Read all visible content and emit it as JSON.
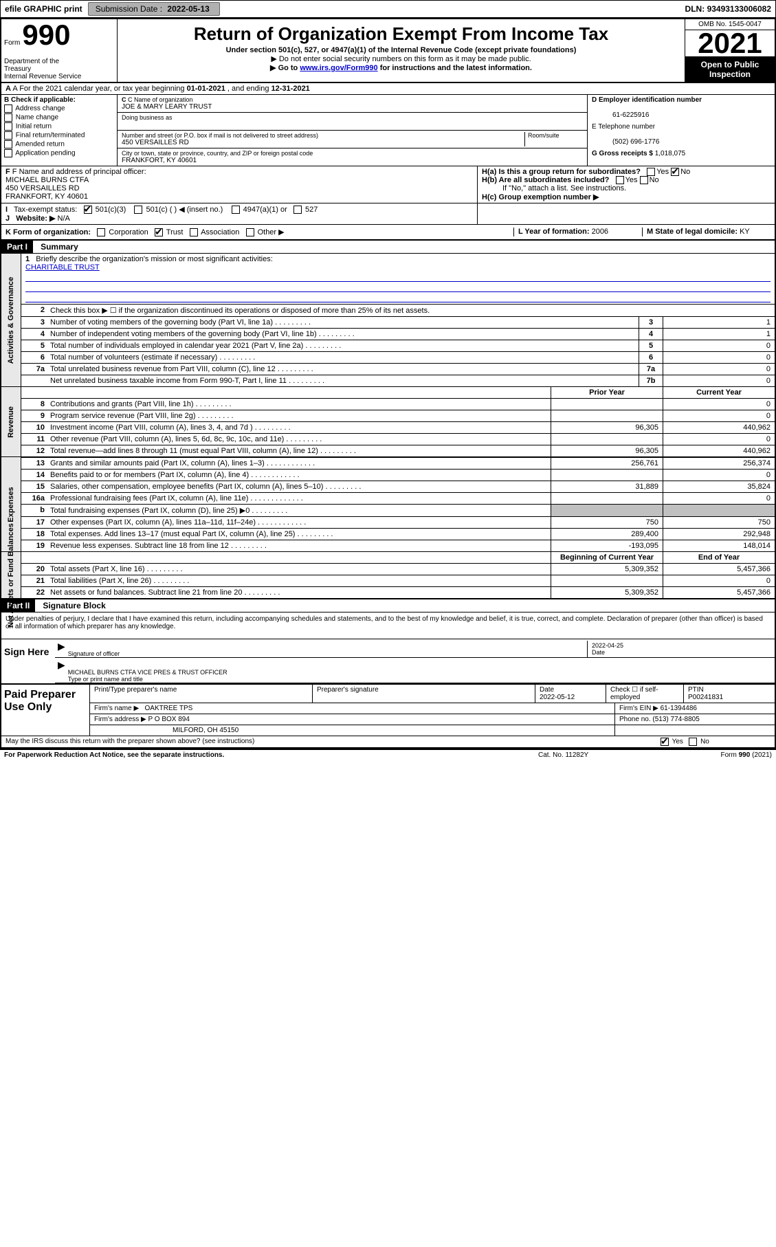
{
  "top": {
    "efile": "efile GRAPHIC print",
    "submission_label": "Submission Date :",
    "submission_date": "2022-05-13",
    "dln_label": "DLN:",
    "dln": "93493133006082"
  },
  "header": {
    "form_label": "Form",
    "form_no": "990",
    "title": "Return of Organization Exempt From Income Tax",
    "subtitle": "Under section 501(c), 527, or 4947(a)(1) of the Internal Revenue Code (except private foundations)",
    "line2": "▶ Do not enter social security numbers on this form as it may be made public.",
    "line3_pre": "▶ Go to ",
    "line3_link": "www.irs.gov/Form990",
    "line3_post": " for instructions and the latest information.",
    "dept": "Department of the Treasury\nInternal Revenue Service",
    "omb": "OMB No. 1545-0047",
    "year": "2021",
    "inspect": "Open to Public Inspection"
  },
  "row_a": {
    "text_pre": "A For the 2021 calendar year, or tax year beginning ",
    "begin": "01-01-2021",
    "mid": " , and ending ",
    "end": "12-31-2021"
  },
  "col_b": {
    "label": "B Check if applicable:",
    "items": [
      "Address change",
      "Name change",
      "Initial return",
      "Final return/terminated",
      "Amended return",
      "Application pending"
    ]
  },
  "col_c": {
    "name_lbl": "C Name of organization",
    "name": "JOE & MARY LEARY TRUST",
    "dba_lbl": "Doing business as",
    "dba": "",
    "addr_lbl": "Number and street (or P.O. box if mail is not delivered to street address)",
    "room_lbl": "Room/suite",
    "addr": "450 VERSAILLES RD",
    "city_lbl": "City or town, state or province, country, and ZIP or foreign postal code",
    "city": "FRANKFORT, KY  40601"
  },
  "col_d": {
    "d_lbl": "D Employer identification number",
    "d_val": "61-6225916",
    "e_lbl": "E Telephone number",
    "e_val": "(502) 696-1776",
    "g_lbl": "G Gross receipts $",
    "g_val": "1,018,075"
  },
  "row_f": {
    "f_lbl": "F Name and address of principal officer:",
    "f_name": "MICHAEL BURNS CTFA",
    "f_addr": "450 VERSAILLES RD",
    "f_city": "FRANKFORT, KY  40601",
    "i_lbl": "Tax-exempt status:",
    "i_501c3": "501(c)(3)",
    "i_501c": "501(c) (   ) ◀ (insert no.)",
    "i_4947": "4947(a)(1) or",
    "i_527": "527",
    "j_lbl": "Website: ▶",
    "j_val": "N/A"
  },
  "row_h": {
    "ha": "H(a)  Is this a group return for subordinates?",
    "ha_yes": "Yes",
    "ha_no": "No",
    "hb": "H(b)  Are all subordinates included?",
    "hb_yes": "Yes",
    "hb_no": "No",
    "hb_note": "If \"No,\" attach a list. See instructions.",
    "hc": "H(c)  Group exemption number ▶"
  },
  "row_k": {
    "k_lbl": "K Form of organization:",
    "k_corp": "Corporation",
    "k_trust": "Trust",
    "k_assoc": "Association",
    "k_other": "Other ▶",
    "l_lbl": "L Year of formation:",
    "l_val": "2006",
    "m_lbl": "M State of legal domicile:",
    "m_val": "KY"
  },
  "part1": {
    "hdr": "Part I",
    "title": "Summary",
    "q1_lbl": "Briefly describe the organization's mission or most significant activities:",
    "q1_val": "CHARITABLE TRUST",
    "q2": "Check this box ▶ ☐  if the organization discontinued its operations or disposed of more than 25% of its net assets.",
    "sections": {
      "gov": "Activities & Governance",
      "rev": "Revenue",
      "exp": "Expenses",
      "net": "Net Assets or Fund Balances"
    },
    "hdr_py": "Prior Year",
    "hdr_cy": "Current Year",
    "hdr_begin": "Beginning of Current Year",
    "hdr_end": "End of Year",
    "lines_gov": [
      {
        "n": "3",
        "t": "Number of voting members of the governing body (Part VI, line 1a)",
        "c": "3",
        "v": "1"
      },
      {
        "n": "4",
        "t": "Number of independent voting members of the governing body (Part VI, line 1b)",
        "c": "4",
        "v": "1"
      },
      {
        "n": "5",
        "t": "Total number of individuals employed in calendar year 2021 (Part V, line 2a)",
        "c": "5",
        "v": "0"
      },
      {
        "n": "6",
        "t": "Total number of volunteers (estimate if necessary)",
        "c": "6",
        "v": "0"
      },
      {
        "n": "7a",
        "t": "Total unrelated business revenue from Part VIII, column (C), line 12",
        "c": "7a",
        "v": "0"
      },
      {
        "n": "",
        "t": "Net unrelated business taxable income from Form 990-T, Part I, line 11",
        "c": "7b",
        "v": "0"
      }
    ],
    "lines_rev": [
      {
        "n": "8",
        "t": "Contributions and grants (Part VIII, line 1h)",
        "py": "",
        "cy": "0"
      },
      {
        "n": "9",
        "t": "Program service revenue (Part VIII, line 2g)",
        "py": "",
        "cy": "0"
      },
      {
        "n": "10",
        "t": "Investment income (Part VIII, column (A), lines 3, 4, and 7d )",
        "py": "96,305",
        "cy": "440,962"
      },
      {
        "n": "11",
        "t": "Other revenue (Part VIII, column (A), lines 5, 6d, 8c, 9c, 10c, and 11e)",
        "py": "",
        "cy": "0"
      },
      {
        "n": "12",
        "t": "Total revenue—add lines 8 through 11 (must equal Part VIII, column (A), line 12)",
        "py": "96,305",
        "cy": "440,962"
      }
    ],
    "lines_exp": [
      {
        "n": "13",
        "t": "Grants and similar amounts paid (Part IX, column (A), lines 1–3)  .  .  .",
        "py": "256,761",
        "cy": "256,374"
      },
      {
        "n": "14",
        "t": "Benefits paid to or for members (Part IX, column (A), line 4)  .  .  .",
        "py": "",
        "cy": "0"
      },
      {
        "n": "15",
        "t": "Salaries, other compensation, employee benefits (Part IX, column (A), lines 5–10)",
        "py": "31,889",
        "cy": "35,824"
      },
      {
        "n": "16a",
        "t": "Professional fundraising fees (Part IX, column (A), line 11e)  .  .  .  .",
        "py": "",
        "cy": "0"
      },
      {
        "n": "b",
        "t": "Total fundraising expenses (Part IX, column (D), line 25) ▶0",
        "py": "grey",
        "cy": "grey"
      },
      {
        "n": "17",
        "t": "Other expenses (Part IX, column (A), lines 11a–11d, 11f–24e)  .  .  .",
        "py": "750",
        "cy": "750"
      },
      {
        "n": "18",
        "t": "Total expenses. Add lines 13–17 (must equal Part IX, column (A), line 25)",
        "py": "289,400",
        "cy": "292,948"
      },
      {
        "n": "19",
        "t": "Revenue less expenses. Subtract line 18 from line 12",
        "py": "-193,095",
        "cy": "148,014"
      }
    ],
    "lines_net": [
      {
        "n": "20",
        "t": "Total assets (Part X, line 16)",
        "py": "5,309,352",
        "cy": "5,457,366"
      },
      {
        "n": "21",
        "t": "Total liabilities (Part X, line 26)",
        "py": "",
        "cy": "0"
      },
      {
        "n": "22",
        "t": "Net assets or fund balances. Subtract line 21 from line 20",
        "py": "5,309,352",
        "cy": "5,457,366"
      }
    ]
  },
  "part2": {
    "hdr": "Part II",
    "title": "Signature Block",
    "decl": "Under penalties of perjury, I declare that I have examined this return, including accompanying schedules and statements, and to the best of my knowledge and belief, it is true, correct, and complete. Declaration of preparer (other than officer) is based on all information of which preparer has any knowledge.",
    "sign_here": "Sign Here",
    "sig_officer": "Signature of officer",
    "sig_date_val": "2022-04-25",
    "sig_date": "Date",
    "sig_name": "MICHAEL BURNS CTFA  VICE PRES & TRUST OFFICER",
    "sig_name_lbl": "Type or print name and title",
    "paid_lbl": "Paid Preparer Use Only",
    "prep_name_lbl": "Print/Type preparer's name",
    "prep_sig_lbl": "Preparer's signature",
    "prep_date_lbl": "Date",
    "prep_date": "2022-05-12",
    "prep_check_lbl": "Check ☐ if self-employed",
    "ptin_lbl": "PTIN",
    "ptin": "P00241831",
    "firm_name_lbl": "Firm's name    ▶",
    "firm_name": "OAKTREE TPS",
    "firm_ein_lbl": "Firm's EIN ▶",
    "firm_ein": "61-1394486",
    "firm_addr_lbl": "Firm's address ▶",
    "firm_addr": "P O BOX 894",
    "firm_city": "MILFORD, OH  45150",
    "phone_lbl": "Phone no.",
    "phone": "(513) 774-8805",
    "discuss": "May the IRS discuss this return with the preparer shown above? (see instructions)",
    "discuss_yes": "Yes",
    "discuss_no": "No"
  },
  "footer": {
    "left": "For Paperwork Reduction Act Notice, see the separate instructions.",
    "mid": "Cat. No. 11282Y",
    "right": "Form 990 (2021)"
  }
}
